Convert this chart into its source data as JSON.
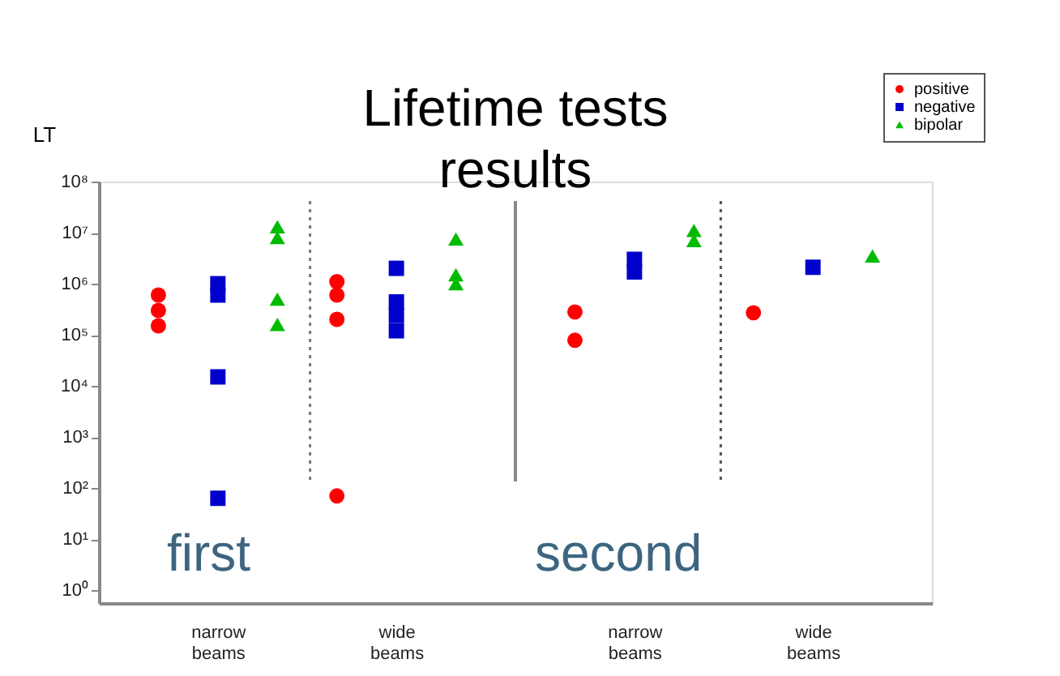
{
  "chart_data": {
    "type": "scatter",
    "title": "Lifetime tests results",
    "ylabel": "LT",
    "log": "y",
    "grid": false,
    "legend": "top right",
    "categories": [
      null,
      "narrow beams",
      null,
      null,
      "wide beams",
      null,
      null,
      null,
      "narrow beams",
      null,
      null,
      "wide beams",
      null
    ],
    "ylim": [
      0.56,
      100000000
    ],
    "yticks": [
      {
        "value": 1,
        "label": "10⁰"
      },
      {
        "value": 10,
        "label": "10¹"
      },
      {
        "value": 100,
        "label": "10²"
      },
      {
        "value": 1000,
        "label": "10³"
      },
      {
        "value": 10000,
        "label": "10⁴"
      },
      {
        "value": 100000,
        "label": "10⁵"
      },
      {
        "value": 1000000,
        "label": "10⁶"
      },
      {
        "value": 10000000,
        "label": "10⁷"
      },
      {
        "value": 100000000,
        "label": "10⁸"
      }
    ],
    "series": [
      {
        "name": "positive",
        "color": "#ff0000",
        "marker": "circle",
        "values": [
          600000,
          null,
          null,
          1100000,
          null,
          null,
          null,
          280000,
          null,
          null,
          270000,
          null,
          null
        ]
      },
      {
        "color": "#ff0000",
        "marker": "circle",
        "values": [
          300000,
          null,
          null,
          600000,
          null,
          null,
          null,
          78000,
          null,
          null,
          null,
          null,
          null
        ]
      },
      {
        "color": "#ff0000",
        "marker": "circle",
        "values": [
          150000,
          null,
          null,
          200000,
          null,
          null,
          null,
          null,
          null,
          null,
          null,
          null,
          null
        ]
      },
      {
        "color": "#ff0000",
        "marker": "circle",
        "values": [
          null,
          null,
          null,
          70,
          null,
          null,
          null,
          null,
          null,
          null,
          null,
          null,
          null
        ]
      },
      {
        "name": "negative",
        "color": "#0000cc",
        "marker": "square",
        "values": [
          null,
          1000000,
          null,
          null,
          2000000,
          null,
          null,
          null,
          3000000,
          null,
          null,
          2100000,
          null
        ]
      },
      {
        "color": "#0000cc",
        "marker": "square",
        "values": [
          null,
          600000,
          null,
          null,
          440000,
          null,
          null,
          null,
          1700000,
          null,
          null,
          null,
          null
        ]
      },
      {
        "color": "#0000cc",
        "marker": "square",
        "values": [
          null,
          15000,
          null,
          null,
          240000,
          null,
          null,
          null,
          null,
          null,
          null,
          null,
          null
        ]
      },
      {
        "color": "#0000cc",
        "marker": "square",
        "values": [
          null,
          63,
          null,
          null,
          120000,
          null,
          null,
          null,
          null,
          null,
          null,
          null,
          null
        ]
      },
      {
        "name": "bipolar",
        "color": "#00bb00",
        "marker": "triangle",
        "values": [
          null,
          null,
          13000000,
          null,
          null,
          7500000,
          null,
          null,
          null,
          11000000,
          null,
          null,
          3500000
        ]
      },
      {
        "color": "#00bb00",
        "marker": "triangle",
        "values": [
          null,
          null,
          8000000,
          null,
          null,
          1500000,
          null,
          null,
          null,
          7000000,
          null,
          null,
          null
        ]
      },
      {
        "color": "#00bb00",
        "marker": "triangle",
        "values": [
          null,
          null,
          500000,
          null,
          null,
          1000000,
          null,
          null,
          null,
          null,
          null,
          null,
          null
        ]
      },
      {
        "color": "#00bb00",
        "marker": "triangle",
        "values": [
          null,
          null,
          160000,
          null,
          null,
          null,
          null,
          null,
          null,
          null,
          null,
          null,
          null
        ]
      }
    ],
    "annotations": [
      "first",
      "second"
    ]
  }
}
